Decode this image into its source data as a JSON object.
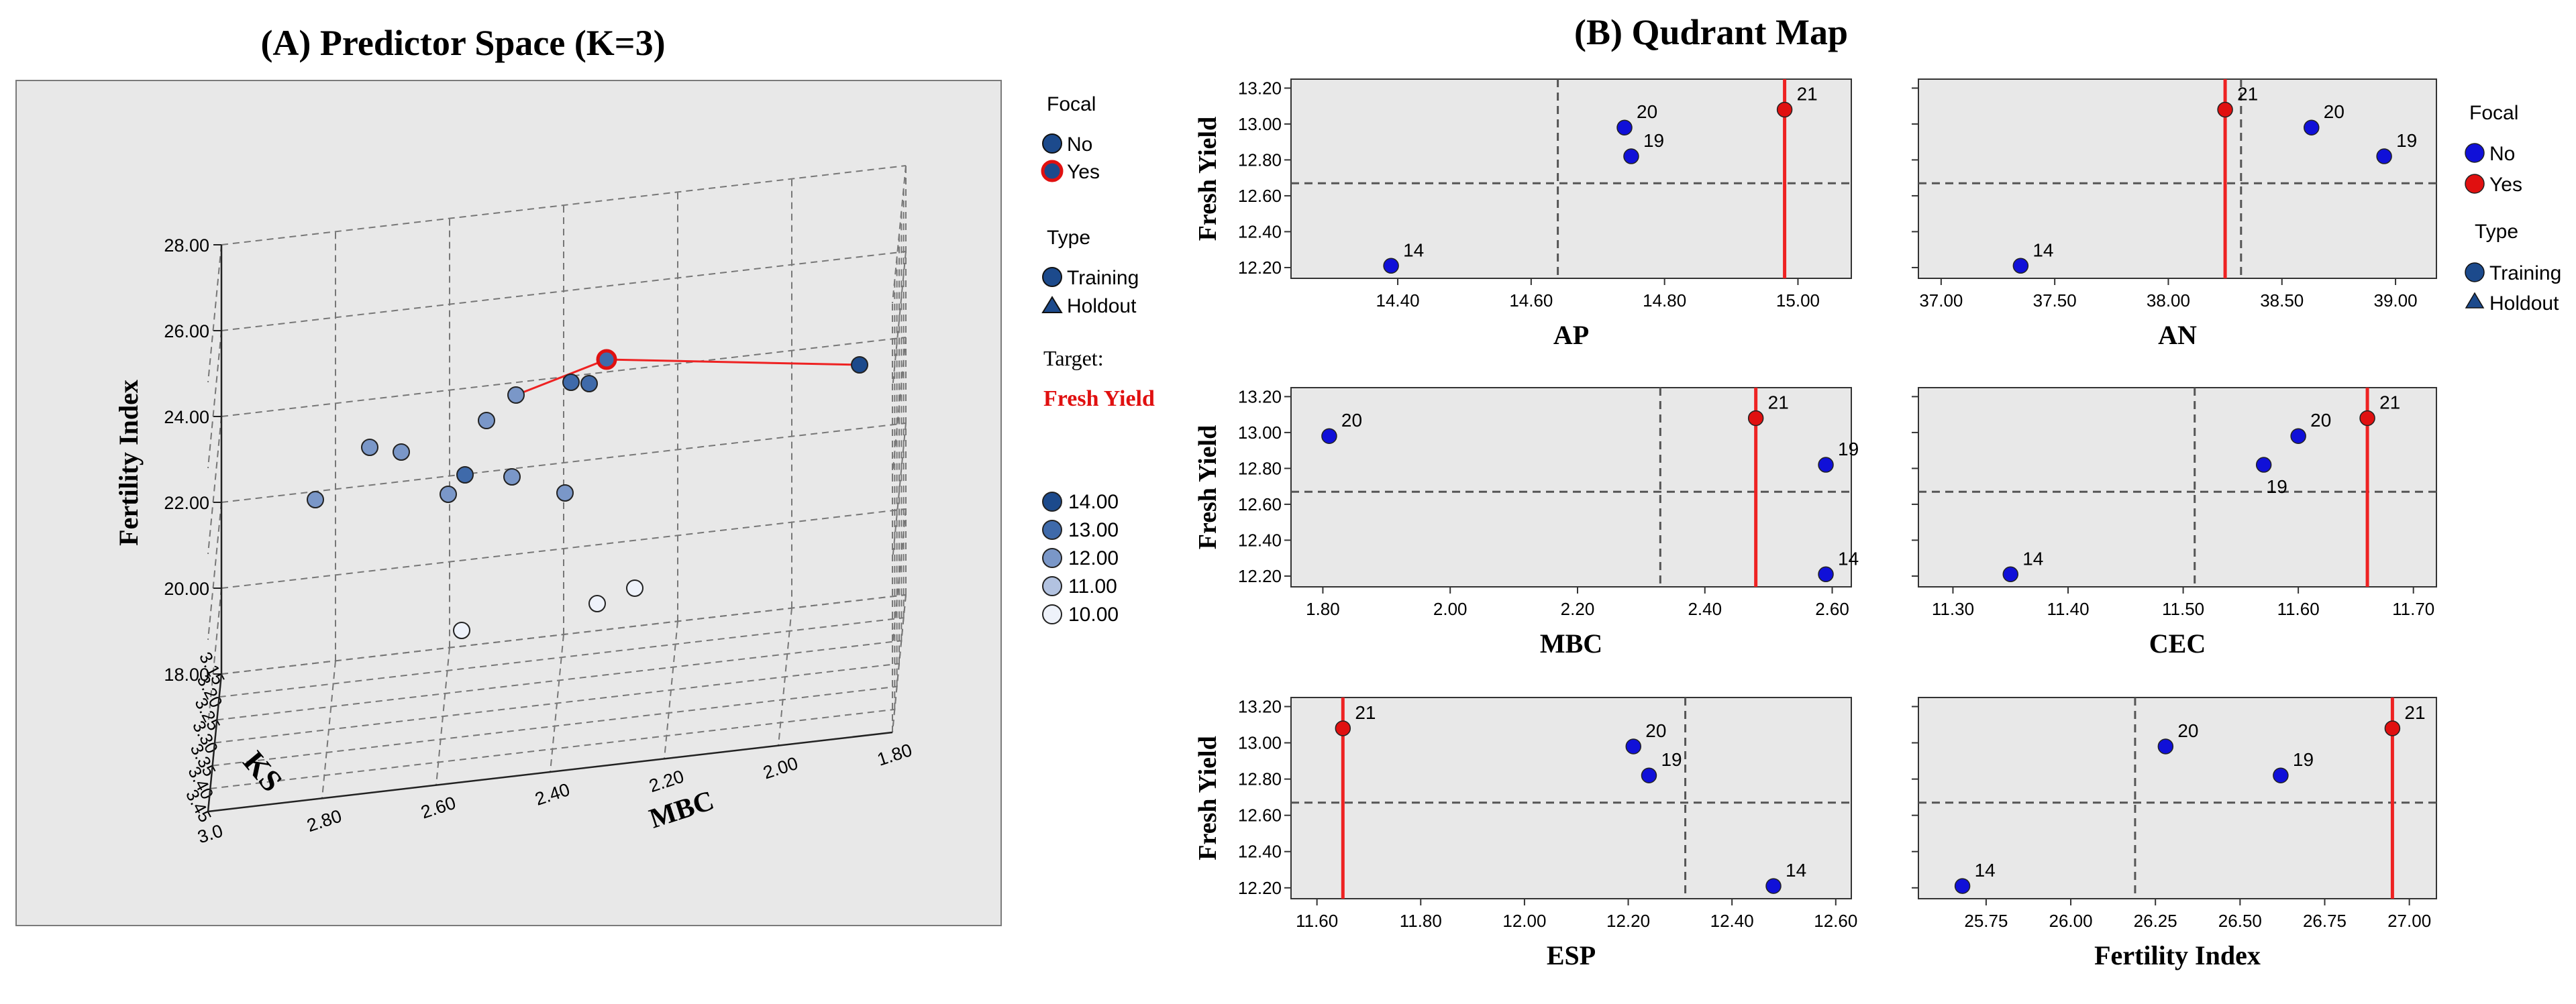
{
  "panelA": {
    "title": "(A) Predictor Space (K=3)",
    "axes": {
      "z_label": "Fertility Index",
      "z_ticks": [
        "18.00",
        "20.00",
        "22.00",
        "24.00",
        "26.00",
        "28.00"
      ],
      "ks_label": "KS",
      "ks_ticks": [
        "3.15",
        "3.20",
        "3.25",
        "3.30",
        "3.35",
        "3.40",
        "3.45"
      ],
      "mbc_label": "MBC",
      "mbc_ticks": [
        "3.0",
        "2.80",
        "2.60",
        "2.40",
        "2.20",
        "2.00",
        "1.80"
      ]
    },
    "legend": {
      "focal_title": "Focal",
      "focal_items": [
        "No",
        "Yes"
      ],
      "type_title": "Type",
      "type_items": [
        "Training",
        "Holdout"
      ],
      "target_title": "Target:",
      "target_value": "Fresh Yield",
      "scale_items": [
        "14.00",
        "13.00",
        "12.00",
        "11.00",
        "10.00"
      ]
    }
  },
  "panelB": {
    "title": "(B) Qudrant Map",
    "legend": {
      "focal_title": "Focal",
      "focal_items": [
        "No",
        "Yes"
      ],
      "type_title": "Type",
      "type_items": [
        "Training",
        "Holdout"
      ]
    }
  },
  "colors": {
    "focal_no": "#1010d8",
    "focal_yes": "#e01010",
    "focal_line": "#ee2222",
    "scale": [
      "#1c4a8c",
      "#3f6aaa",
      "#7a97c8",
      "#b2c2e0",
      "#eef2fa"
    ]
  },
  "chart_data": [
    {
      "type": "scatter",
      "title": "(A) Predictor Space (K=3)",
      "note": "3D scatter with vertical focal link; points approximate",
      "axes": {
        "x": "MBC",
        "y": "KS",
        "z": "Fertility Index"
      },
      "zlim": [
        18,
        28
      ],
      "ylim": [
        3.15,
        3.45
      ],
      "xlim": [
        1.8,
        3.0
      ],
      "focal_point": {
        "x": 2.48,
        "y": 3.16,
        "z": 26.94,
        "label": "21"
      },
      "neighbors": [
        {
          "x": 1.81,
          "y": 3.15,
          "z": 26.28
        },
        {
          "x": 2.59,
          "y": 3.17,
          "z": 26.62
        },
        {
          "x": 2.59,
          "y": 3.18,
          "z": 25.68
        }
      ]
    },
    {
      "type": "scatter",
      "ylabel": "Fresh Yield",
      "xlabel": "AP",
      "xticks": [
        "14.40",
        "14.60",
        "14.80",
        "15.00"
      ],
      "yticks": [
        "12.20",
        "12.40",
        "12.60",
        "12.80",
        "13.00",
        "13.20"
      ],
      "xlim": [
        14.24,
        15.08
      ],
      "ylim": [
        12.14,
        13.25
      ],
      "vline": 14.64,
      "hline": 12.67,
      "focal_x": 14.98,
      "points": [
        {
          "label": "21",
          "x": 14.98,
          "y": 13.08,
          "focal": true
        },
        {
          "label": "20",
          "x": 14.74,
          "y": 12.98,
          "focal": false
        },
        {
          "label": "19",
          "x": 14.75,
          "y": 12.82,
          "focal": false
        },
        {
          "label": "14",
          "x": 14.39,
          "y": 12.21,
          "focal": false
        }
      ]
    },
    {
      "type": "scatter",
      "ylabel": "",
      "xlabel": "AN",
      "xticks": [
        "37.00",
        "37.50",
        "38.00",
        "38.50",
        "39.00"
      ],
      "yticks": [],
      "xlim": [
        36.9,
        39.18
      ],
      "ylim": [
        12.14,
        13.25
      ],
      "vline": 38.32,
      "hline": 12.67,
      "focal_x": 38.25,
      "points": [
        {
          "label": "21",
          "x": 38.25,
          "y": 13.08,
          "focal": true
        },
        {
          "label": "20",
          "x": 38.63,
          "y": 12.98,
          "focal": false
        },
        {
          "label": "19",
          "x": 38.95,
          "y": 12.82,
          "focal": false
        },
        {
          "label": "14",
          "x": 37.35,
          "y": 12.21,
          "focal": false
        }
      ]
    },
    {
      "type": "scatter",
      "ylabel": "Fresh Yield",
      "xlabel": "MBC",
      "xticks": [
        "1.80",
        "2.00",
        "2.20",
        "2.40",
        "2.60"
      ],
      "yticks": [
        "12.20",
        "12.40",
        "12.60",
        "12.80",
        "13.00",
        "13.20"
      ],
      "xlim": [
        1.75,
        2.63
      ],
      "ylim": [
        12.14,
        13.25
      ],
      "vline": 2.33,
      "hline": 12.67,
      "focal_x": 2.48,
      "points": [
        {
          "label": "21",
          "x": 2.48,
          "y": 13.08,
          "focal": true
        },
        {
          "label": "20",
          "x": 1.81,
          "y": 12.98,
          "focal": false
        },
        {
          "label": "19",
          "x": 2.59,
          "y": 12.82,
          "focal": false
        },
        {
          "label": "14",
          "x": 2.59,
          "y": 12.21,
          "focal": false
        }
      ]
    },
    {
      "type": "scatter",
      "ylabel": "",
      "xlabel": "CEC",
      "xticks": [
        "11.30",
        "11.40",
        "11.50",
        "11.60",
        "11.70"
      ],
      "yticks": [],
      "xlim": [
        11.27,
        11.72
      ],
      "ylim": [
        12.14,
        13.25
      ],
      "vline": 11.51,
      "hline": 12.67,
      "focal_x": 11.66,
      "points": [
        {
          "label": "21",
          "x": 11.66,
          "y": 13.08,
          "focal": true
        },
        {
          "label": "20",
          "x": 11.6,
          "y": 12.98,
          "focal": false
        },
        {
          "label": "19",
          "x": 11.57,
          "y": 12.82,
          "focal": false
        },
        {
          "label": "14",
          "x": 11.35,
          "y": 12.21,
          "focal": false
        }
      ]
    },
    {
      "type": "scatter",
      "ylabel": "Fresh Yield",
      "xlabel": "ESP",
      "xticks": [
        "11.60",
        "11.80",
        "12.00",
        "12.20",
        "12.40",
        "12.60"
      ],
      "yticks": [
        "12.20",
        "12.40",
        "12.60",
        "12.80",
        "13.00",
        "13.20"
      ],
      "xlim": [
        11.55,
        12.63
      ],
      "ylim": [
        12.14,
        13.25
      ],
      "vline": 12.31,
      "hline": 12.67,
      "focal_x": 11.65,
      "points": [
        {
          "label": "21",
          "x": 11.65,
          "y": 13.08,
          "focal": true
        },
        {
          "label": "20",
          "x": 12.21,
          "y": 12.98,
          "focal": false
        },
        {
          "label": "19",
          "x": 12.24,
          "y": 12.82,
          "focal": false
        },
        {
          "label": "14",
          "x": 12.48,
          "y": 12.21,
          "focal": false
        }
      ]
    },
    {
      "type": "scatter",
      "ylabel": "",
      "xlabel": "Fertility Index",
      "xticks": [
        "25.75",
        "26.00",
        "26.25",
        "26.50",
        "26.75",
        "27.00"
      ],
      "yticks": [],
      "xlim": [
        25.55,
        27.08
      ],
      "ylim": [
        12.14,
        13.25
      ],
      "vline": 26.19,
      "hline": 12.67,
      "focal_x": 26.95,
      "points": [
        {
          "label": "21",
          "x": 26.95,
          "y": 13.08,
          "focal": true
        },
        {
          "label": "20",
          "x": 26.28,
          "y": 12.98,
          "focal": false
        },
        {
          "label": "19",
          "x": 26.62,
          "y": 12.82,
          "focal": false
        },
        {
          "label": "14",
          "x": 25.68,
          "y": 12.21,
          "focal": false
        }
      ]
    }
  ]
}
